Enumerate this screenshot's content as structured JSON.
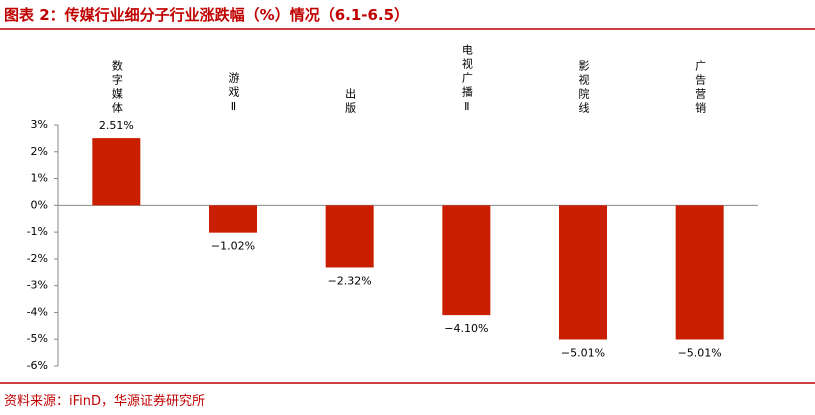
{
  "chart_data": {
    "type": "bar",
    "title": "图表 2：传媒行业细分子行业涨跌幅（%）情况（6.1-6.5）",
    "source": "资料来源：iFinD，华源证券研究所",
    "categories": [
      "数字媒体",
      "游戏Ⅱ",
      "出版",
      "电视广播Ⅱ",
      "影视院线",
      "广告营销"
    ],
    "values": [
      2.51,
      -1.02,
      -2.32,
      -4.1,
      -5.01,
      -5.01
    ],
    "value_labels": [
      "2.51%",
      "−1.02%",
      "−2.32%",
      "−4.10%",
      "−5.01%",
      "−5.01%"
    ],
    "color": "#c91f00",
    "ylim": [
      -6,
      3
    ],
    "yticks": [
      {
        "value": 3,
        "label": "3%"
      },
      {
        "value": 2,
        "label": "2%"
      },
      {
        "value": 1,
        "label": "1%"
      },
      {
        "value": 0,
        "label": "0%"
      },
      {
        "value": -1,
        "label": "-1%"
      },
      {
        "value": -2,
        "label": "-2%"
      },
      {
        "value": -3,
        "label": "-3%"
      },
      {
        "value": -4,
        "label": "-4%"
      },
      {
        "value": -5,
        "label": "-5%"
      },
      {
        "value": -6,
        "label": "-6%"
      }
    ]
  }
}
